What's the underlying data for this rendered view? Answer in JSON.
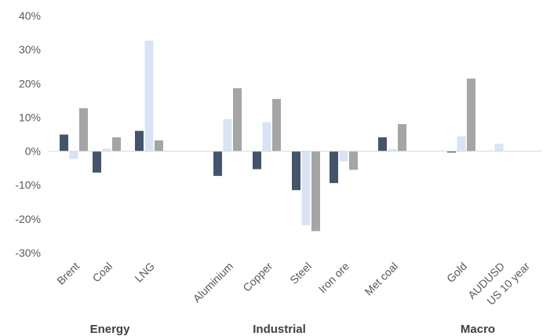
{
  "chart_data": {
    "type": "bar",
    "categories": [
      "Brent",
      "Coal",
      "LNG",
      "Aluminium",
      "Copper",
      "Steel",
      "Iron ore",
      "Met coal",
      "Gold",
      "AUDUSD",
      "US 10 year"
    ],
    "groups": [
      {
        "label": "Energy",
        "categories": [
          "Brent",
          "Coal",
          "LNG"
        ]
      },
      {
        "label": "Industrial",
        "categories": [
          "Aluminium",
          "Copper",
          "Steel",
          "Iron ore",
          "Met coal"
        ]
      },
      {
        "label": "Macro",
        "categories": [
          "Gold",
          "AUDUSD",
          "US 10 year"
        ]
      }
    ],
    "series": [
      {
        "color": "#44546A",
        "values": [
          4.9,
          -6.3,
          6.0,
          -7.3,
          -5.3,
          -11.5,
          -9.4,
          4.1,
          -0.4,
          null,
          null
        ]
      },
      {
        "color": "#DAE3F3",
        "values": [
          -2.3,
          0.8,
          32.6,
          9.5,
          8.6,
          -21.9,
          -3.0,
          0.7,
          4.4,
          2.2,
          null
        ]
      },
      {
        "color": "#A5A5A5",
        "values": [
          12.7,
          4.1,
          3.2,
          18.6,
          15.4,
          -23.6,
          -5.5,
          8.0,
          21.4,
          null,
          null
        ]
      }
    ],
    "y_ticks": [
      "40%",
      "30%",
      "20%",
      "10%",
      "0%",
      "-10%",
      "-20%",
      "-30%"
    ],
    "ylim": [
      -30,
      40
    ],
    "grid": false,
    "legend": "none"
  }
}
